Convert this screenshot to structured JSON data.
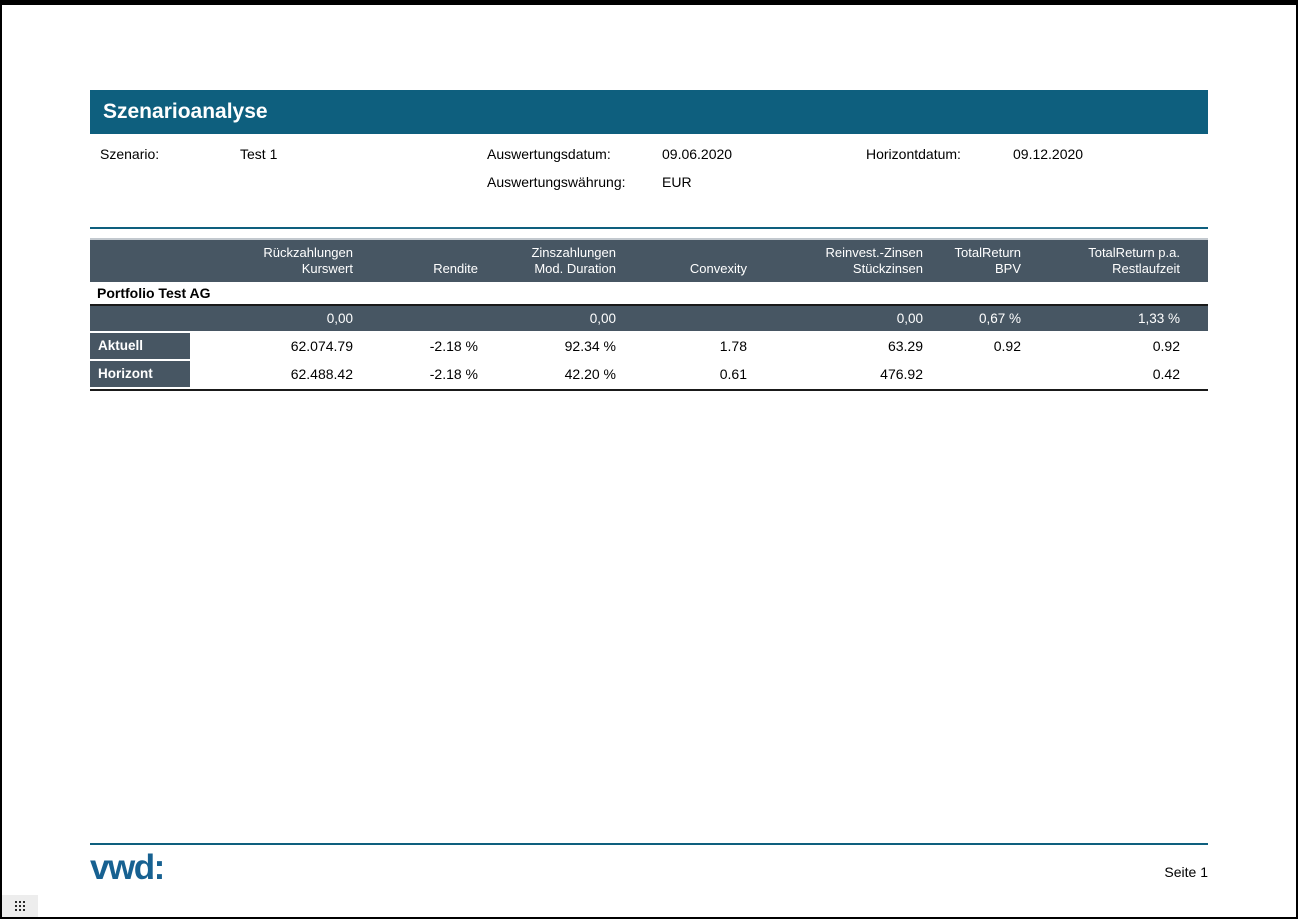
{
  "report": {
    "title": "Szenarioanalyse",
    "meta": {
      "szenario_label": "Szenario:",
      "szenario_value": "Test 1",
      "auswertungsdatum_label": "Auswertungsdatum:",
      "auswertungsdatum_value": "09.06.2020",
      "horizontdatum_label": "Horizontdatum:",
      "horizontdatum_value": "09.12.2020",
      "auswertungswaehrung_label": "Auswertungswährung:",
      "auswertungswaehrung_value": "EUR"
    },
    "table": {
      "columns": [
        {
          "line1": "Rückzahlungen",
          "line2": "Kurswert"
        },
        {
          "line1": "",
          "line2": "Rendite"
        },
        {
          "line1": "Zinszahlungen",
          "line2": "Mod. Duration"
        },
        {
          "line1": "",
          "line2": "Convexity"
        },
        {
          "line1": "Reinvest.-Zinsen",
          "line2": "Stückzinsen"
        },
        {
          "line1": "TotalReturn",
          "line2": "BPV"
        },
        {
          "line1": "TotalReturn p.a.",
          "line2": "Restlaufzeit"
        }
      ],
      "group_title": "Portfolio Test AG",
      "summary_row": {
        "values": [
          "0,00",
          "",
          "0,00",
          "",
          "0,00",
          "0,67 %",
          "1,33 %"
        ]
      },
      "rows": [
        {
          "label": "Aktuell",
          "values": [
            "62.074.79",
            "-2.18 %",
            "92.34 %",
            "1.78",
            "63.29",
            "0.92",
            "0.92"
          ]
        },
        {
          "label": "Horizont",
          "values": [
            "62.488.42",
            "-2.18 %",
            "42.20 %",
            "0.61",
            "476.92",
            "",
            "0.42"
          ]
        }
      ]
    },
    "footer": {
      "logo": "vwd:",
      "page": "Seite 1"
    }
  },
  "colors": {
    "accent_teal": "#0e5f7e",
    "table_header_slate": "#475663",
    "logo_blue": "#176191"
  }
}
